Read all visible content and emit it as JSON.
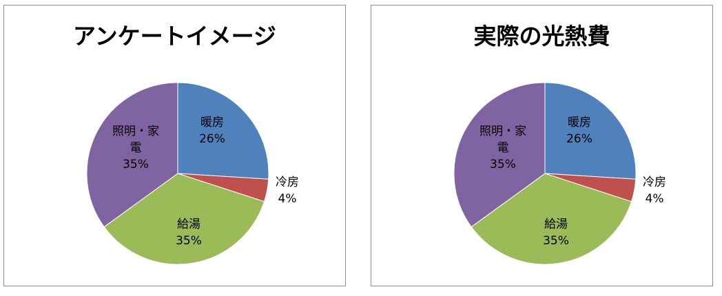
{
  "chart_data": [
    {
      "type": "pie",
      "title": "アンケートイメージ",
      "slices": [
        {
          "label_lines": [
            "暖房"
          ],
          "value": 26,
          "value_label": "26%",
          "color": "#4f81bd"
        },
        {
          "label_lines": [
            "冷房"
          ],
          "value": 4,
          "value_label": "4%",
          "color": "#c0504d"
        },
        {
          "label_lines": [
            "給湯"
          ],
          "value": 35,
          "value_label": "35%",
          "color": "#9bbb59"
        },
        {
          "label_lines": [
            "照明・家",
            "電"
          ],
          "value": 35,
          "value_label": "35%",
          "color": "#8064a2"
        }
      ]
    },
    {
      "type": "pie",
      "title": "実際の光熱費",
      "slices": [
        {
          "label_lines": [
            "暖房"
          ],
          "value": 26,
          "value_label": "26%",
          "color": "#4f81bd"
        },
        {
          "label_lines": [
            "冷房"
          ],
          "value": 4,
          "value_label": "4%",
          "color": "#c0504d"
        },
        {
          "label_lines": [
            "給湯"
          ],
          "value": 35,
          "value_label": "35%",
          "color": "#9bbb59"
        },
        {
          "label_lines": [
            "照明・家",
            "電"
          ],
          "value": 35,
          "value_label": "35%",
          "color": "#8064a2"
        }
      ]
    }
  ]
}
